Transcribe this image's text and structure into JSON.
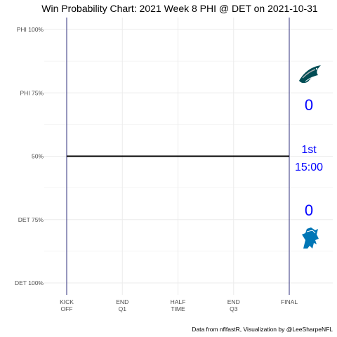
{
  "chart_data": {
    "type": "line",
    "title": "Win Probability Chart: 2021 Week 8 PHI @ DET on 2021-10-31",
    "x_ticks": [
      {
        "value": 0,
        "label": [
          "KICK",
          "OFF"
        ]
      },
      {
        "value": 15,
        "label": [
          "END",
          "Q1"
        ]
      },
      {
        "value": 30,
        "label": [
          "HALF",
          "TIME"
        ]
      },
      {
        "value": 45,
        "label": [
          "END",
          "Q3"
        ]
      },
      {
        "value": 60,
        "label": [
          "FINAL"
        ]
      }
    ],
    "xlim": [
      0,
      60
    ],
    "y_ticks": [
      {
        "value": 1.0,
        "label": "PHI 100%"
      },
      {
        "value": 0.75,
        "label": "PHI 75%"
      },
      {
        "value": 0.5,
        "label": "50%"
      },
      {
        "value": 0.25,
        "label": "DET 75%"
      },
      {
        "value": 0.0,
        "label": "DET 100%"
      }
    ],
    "ylim": [
      0,
      1
    ],
    "grid": true,
    "series": [
      {
        "values": [
          {
            "x": 0,
            "y": 0.5
          },
          {
            "x": 60,
            "y": 0.5
          }
        ]
      }
    ],
    "annotations": {
      "away_score": "0",
      "home_score": "0",
      "quarter": "1st",
      "clock": "15:00"
    },
    "caption": "Data from nflfastR, Visualization by @LeeSharpeNFL"
  },
  "colors": {
    "line": "#000000",
    "vlines": "#191970",
    "grid": "#ebebeb",
    "annotation": "#0000ff",
    "away_team": "#004c54",
    "home_team": "#0076b6"
  },
  "icons": {
    "away": "eagles-logo-icon",
    "home": "lions-logo-icon"
  }
}
